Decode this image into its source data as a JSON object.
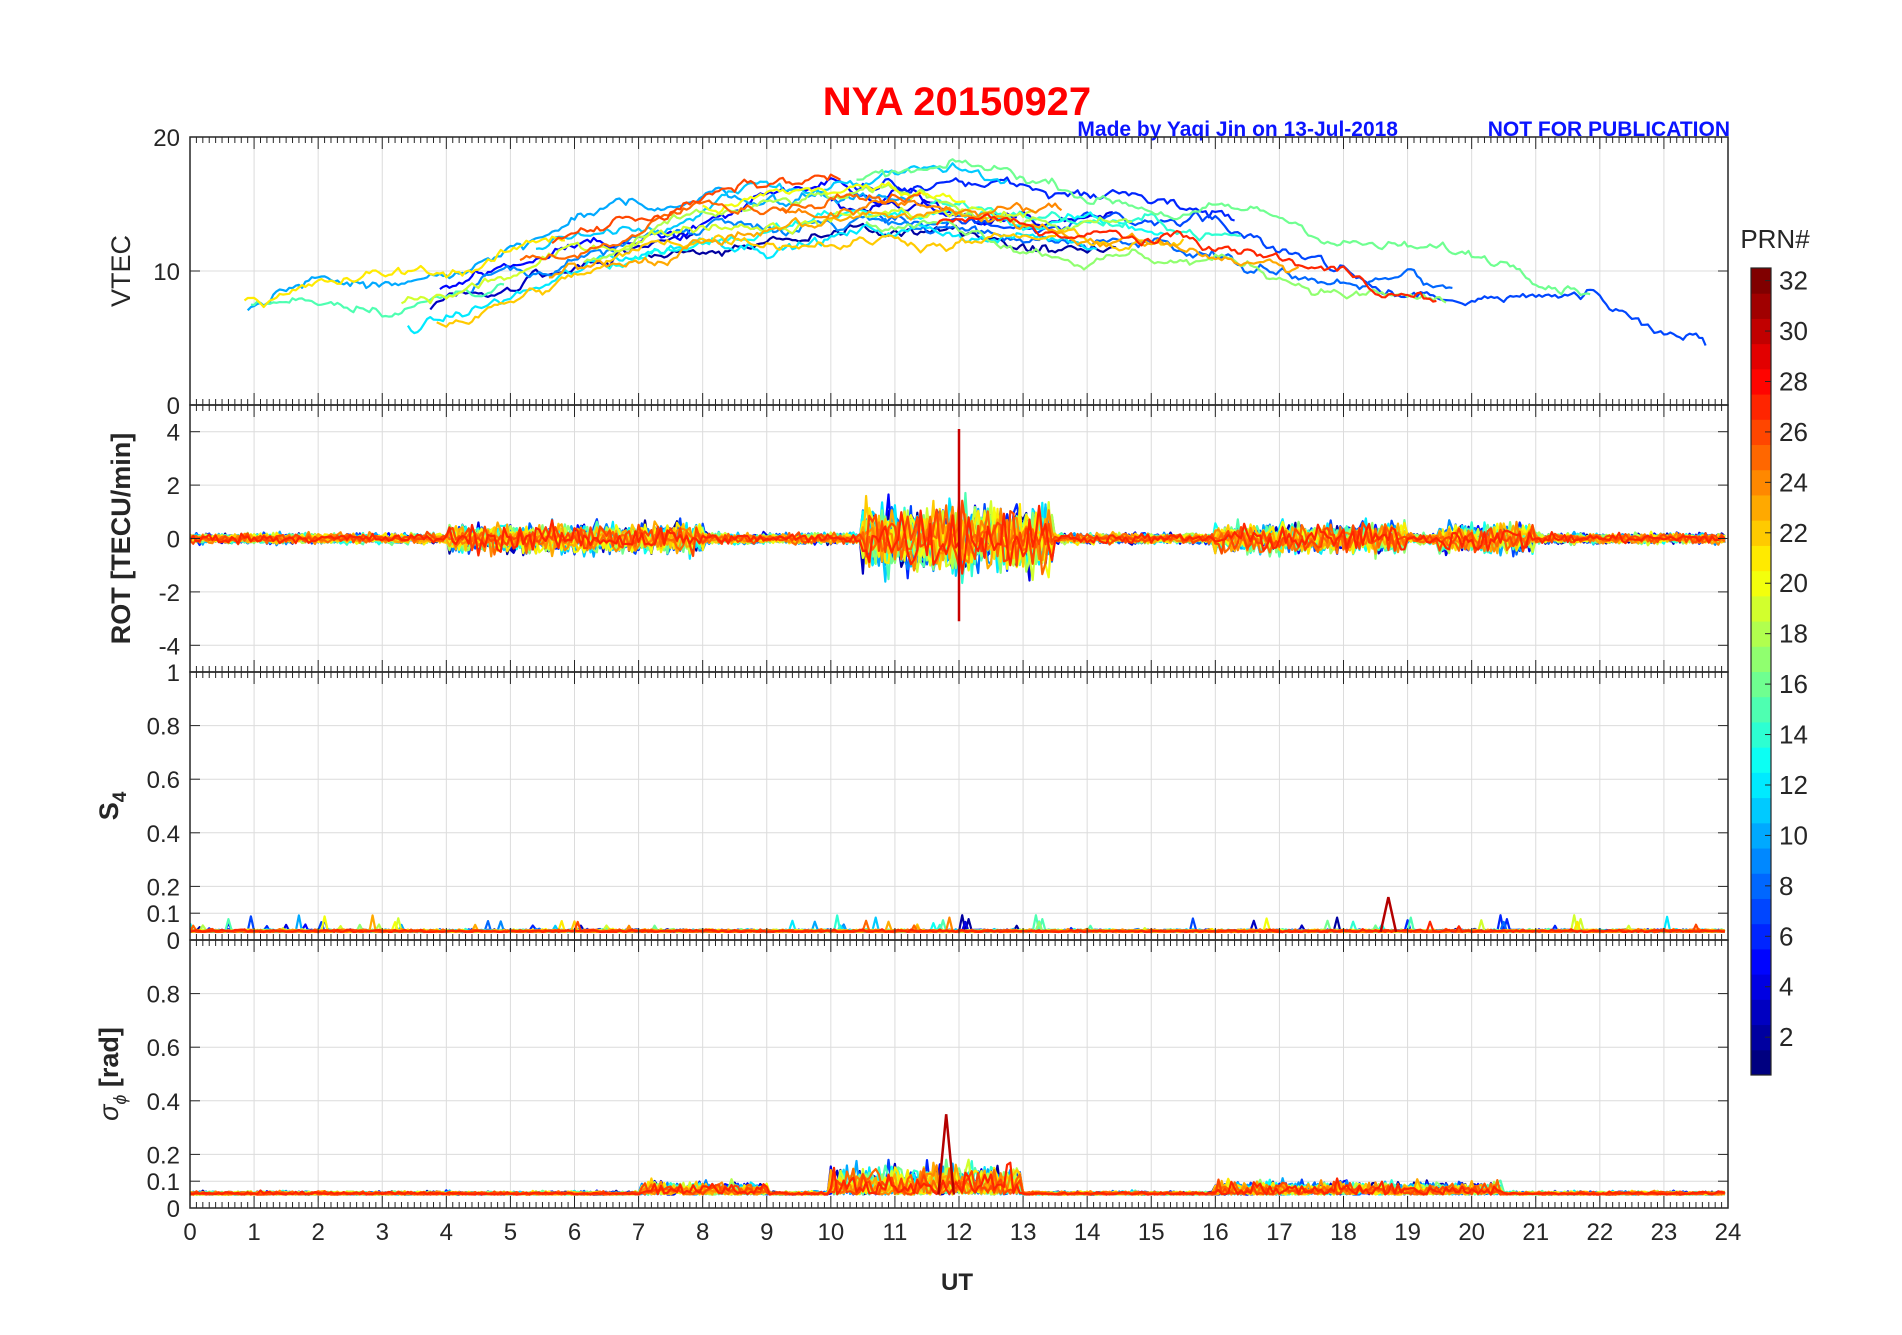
{
  "title": "NYA   20150927",
  "watermark": {
    "credit": "Made by Yaqi Jin on 13-Jul-2018",
    "notice": "NOT FOR PUBLICATION"
  },
  "colors": {
    "title": "#ff0000",
    "watermark": "#0a14ff",
    "grid": "#dcdcdc",
    "axes": "#262626"
  },
  "colorbar": {
    "label": "PRN#",
    "ticks": [
      "2",
      "4",
      "6",
      "8",
      "10",
      "12",
      "14",
      "16",
      "18",
      "20",
      "22",
      "24",
      "26",
      "28",
      "30",
      "32"
    ],
    "range": [
      1,
      32
    ],
    "colormap": "jet"
  },
  "chart_data": {
    "type": "line",
    "x_label": "UT",
    "x_range": [
      0,
      24
    ],
    "x_ticks": [
      "0",
      "1",
      "2",
      "3",
      "4",
      "5",
      "6",
      "7",
      "8",
      "9",
      "10",
      "11",
      "12",
      "13",
      "14",
      "15",
      "16",
      "17",
      "18",
      "19",
      "20",
      "21",
      "22",
      "23",
      "24"
    ],
    "series_colored_by": "PRN#",
    "grid": true,
    "panels": [
      {
        "id": "vtec",
        "ylabel": "VTEC",
        "ylim": [
          0,
          20
        ],
        "y_ticks": [
          "0",
          "10",
          "20"
        ],
        "envelope": {
          "x": [
            0,
            2,
            4,
            6,
            8,
            10,
            12,
            14,
            16,
            18,
            20,
            22,
            24
          ],
          "y": [
            6,
            7,
            8,
            11,
            14,
            15,
            15,
            14,
            13,
            11,
            9,
            9,
            5
          ]
        }
      },
      {
        "id": "rot",
        "ylabel": "ROT [TECU/min]",
        "ylim": [
          -5,
          5
        ],
        "y_ticks": [
          "-4",
          "-2",
          "0",
          "2",
          "4"
        ],
        "peaks": {
          "max": 4.1,
          "max_at": 12.0,
          "min": -3.1,
          "min_at": 12.0
        }
      },
      {
        "id": "s4",
        "ylabel": "S",
        "ylabel_sub": "4",
        "ylim": [
          0,
          1
        ],
        "y_ticks": [
          "0",
          "0.1",
          "0.2",
          "0.4",
          "0.6",
          "0.8",
          "1"
        ],
        "baseline": 0.03,
        "peak": {
          "value": 0.16,
          "at": 18.7
        }
      },
      {
        "id": "sigma",
        "ylabel_symbol": "σ",
        "ylabel_sub": "ϕ",
        "ylabel_unit": "[rad]",
        "ylim": [
          0,
          1
        ],
        "y_ticks": [
          "0",
          "0.1",
          "0.2",
          "0.4",
          "0.6",
          "0.8"
        ],
        "baseline": 0.05,
        "peak": {
          "value": 0.35,
          "at": 11.8
        }
      }
    ]
  }
}
